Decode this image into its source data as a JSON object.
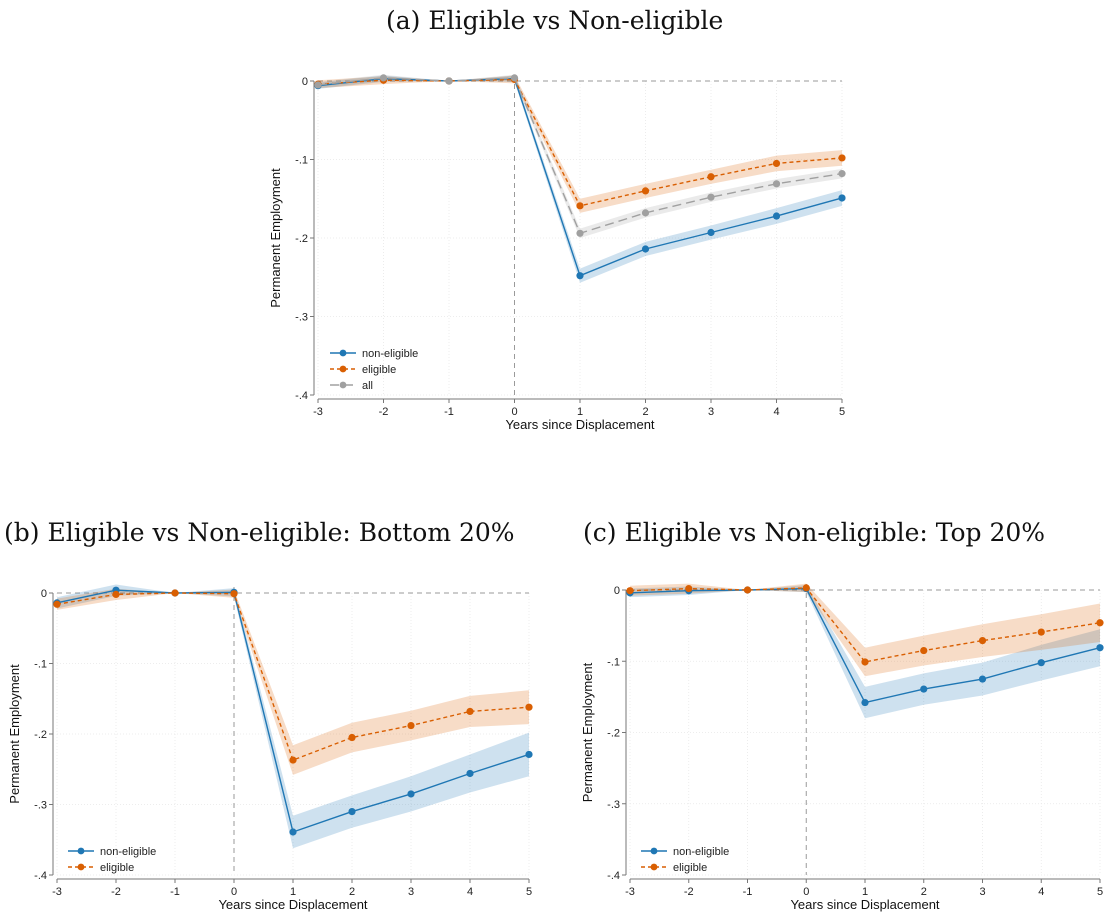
{
  "panels": [
    {
      "title": "(a) Eligible vs Non-eligible"
    },
    {
      "title": "(b) Eligible vs Non-eligible: Bottom 20%"
    },
    {
      "title": "(c) Eligible vs Non-eligible: Top 20%"
    }
  ],
  "colors": {
    "non_eligible": "#1f77b4",
    "eligible": "#d95f02",
    "all": "#a0a0a0"
  },
  "chart_data": [
    {
      "type": "line",
      "title": "(a) Eligible vs Non-eligible",
      "xlabel": "Years since Displacement",
      "ylabel": "Permanent Employment",
      "x": [
        -3,
        -2,
        -1,
        0,
        1,
        2,
        3,
        4,
        5
      ],
      "xlim": [
        -3,
        5
      ],
      "ylim": [
        -0.4,
        0
      ],
      "yticks": [
        0,
        -0.1,
        -0.2,
        -0.3,
        -0.4
      ],
      "ytick_labels": [
        "0",
        "-.1",
        "-.2",
        "-.3",
        "-.4"
      ],
      "event_line_x": 0,
      "grid": true,
      "legend_position": "bottom-left",
      "series": [
        {
          "name": "non-eligible",
          "style": "solid",
          "color": "#1f77b4",
          "values": [
            -0.006,
            0.003,
            0,
            0.003,
            -0.248,
            -0.214,
            -0.193,
            -0.172,
            -0.149
          ],
          "ci_lower": [
            -0.01,
            -0.001,
            0,
            -0.001,
            -0.257,
            -0.223,
            -0.202,
            -0.182,
            -0.159
          ],
          "ci_upper": [
            -0.002,
            0.007,
            0,
            0.007,
            -0.239,
            -0.205,
            -0.184,
            -0.162,
            -0.139
          ]
        },
        {
          "name": "eligible",
          "style": "dash",
          "color": "#d95f02",
          "values": [
            -0.004,
            0.001,
            0,
            0.002,
            -0.159,
            -0.14,
            -0.122,
            -0.105,
            -0.098
          ],
          "ci_lower": [
            -0.009,
            -0.004,
            0,
            -0.003,
            -0.168,
            -0.149,
            -0.131,
            -0.115,
            -0.108
          ],
          "ci_upper": [
            0.001,
            0.006,
            0,
            0.007,
            -0.15,
            -0.131,
            -0.113,
            -0.095,
            -0.088
          ]
        },
        {
          "name": "all",
          "style": "longdash",
          "color": "#a0a0a0",
          "values": [
            -0.005,
            0.004,
            0,
            0.004,
            -0.194,
            -0.168,
            -0.148,
            -0.131,
            -0.118
          ],
          "ci_lower": [
            -0.009,
            0,
            0,
            0,
            -0.2,
            -0.174,
            -0.154,
            -0.137,
            -0.124
          ],
          "ci_upper": [
            -0.001,
            0.008,
            0,
            0.008,
            -0.188,
            -0.162,
            -0.142,
            -0.125,
            -0.112
          ]
        }
      ]
    },
    {
      "type": "line",
      "title": "(b) Eligible vs Non-eligible: Bottom 20%",
      "xlabel": "Years since Displacement",
      "ylabel": "Permanent Employment",
      "x": [
        -3,
        -2,
        -1,
        0,
        1,
        2,
        3,
        4,
        5
      ],
      "xlim": [
        -3,
        5
      ],
      "ylim": [
        -0.4,
        0
      ],
      "yticks": [
        0,
        -0.1,
        -0.2,
        -0.3,
        -0.4
      ],
      "ytick_labels": [
        "0",
        "-.1",
        "-.2",
        "-.3",
        "-.4"
      ],
      "event_line_x": 0,
      "grid": true,
      "legend_position": "bottom-left",
      "series": [
        {
          "name": "non-eligible",
          "style": "solid",
          "color": "#1f77b4",
          "values": [
            -0.014,
            0.004,
            0,
            0.001,
            -0.339,
            -0.31,
            -0.285,
            -0.256,
            -0.229
          ],
          "ci_lower": [
            -0.022,
            -0.004,
            0,
            -0.005,
            -0.362,
            -0.333,
            -0.31,
            -0.283,
            -0.26
          ],
          "ci_upper": [
            -0.006,
            0.012,
            0,
            0.007,
            -0.316,
            -0.287,
            -0.26,
            -0.229,
            -0.198
          ]
        },
        {
          "name": "eligible",
          "style": "dash",
          "color": "#d95f02",
          "values": [
            -0.016,
            -0.002,
            0,
            -0.001,
            -0.237,
            -0.205,
            -0.188,
            -0.168,
            -0.162
          ],
          "ci_lower": [
            -0.024,
            -0.01,
            0,
            -0.007,
            -0.258,
            -0.226,
            -0.209,
            -0.19,
            -0.186
          ],
          "ci_upper": [
            -0.008,
            0.006,
            0,
            0.005,
            -0.216,
            -0.184,
            -0.167,
            -0.146,
            -0.138
          ]
        }
      ]
    },
    {
      "type": "line",
      "title": "(c) Eligible vs Non-eligible: Top 20%",
      "xlabel": "Years since Displacement",
      "ylabel": "Permanent Employment",
      "x": [
        -3,
        -2,
        -1,
        0,
        1,
        2,
        3,
        4,
        5
      ],
      "xlim": [
        -3,
        5
      ],
      "ylim": [
        -0.4,
        0
      ],
      "yticks": [
        0,
        -0.1,
        -0.2,
        -0.3,
        -0.4
      ],
      "ytick_labels": [
        "0",
        "-.1",
        "-.2",
        "-.3",
        "-.4"
      ],
      "event_line_x": 0,
      "grid": true,
      "legend_position": "bottom-left",
      "series": [
        {
          "name": "non-eligible",
          "style": "solid",
          "color": "#1f77b4",
          "values": [
            -0.004,
            -0.001,
            0,
            0.002,
            -0.158,
            -0.139,
            -0.125,
            -0.102,
            -0.081
          ],
          "ci_lower": [
            -0.01,
            -0.007,
            0,
            -0.003,
            -0.18,
            -0.161,
            -0.148,
            -0.127,
            -0.107
          ],
          "ci_upper": [
            0.002,
            0.005,
            0,
            0.007,
            -0.136,
            -0.117,
            -0.102,
            -0.077,
            -0.055
          ]
        },
        {
          "name": "eligible",
          "style": "dash",
          "color": "#d95f02",
          "values": [
            -0.001,
            0.002,
            0,
            0.003,
            -0.101,
            -0.085,
            -0.071,
            -0.059,
            -0.046
          ],
          "ci_lower": [
            -0.008,
            -0.005,
            0,
            -0.003,
            -0.121,
            -0.106,
            -0.094,
            -0.084,
            -0.073
          ],
          "ci_upper": [
            0.006,
            0.009,
            0,
            0.009,
            -0.081,
            -0.064,
            -0.048,
            -0.034,
            -0.019
          ]
        }
      ]
    }
  ]
}
